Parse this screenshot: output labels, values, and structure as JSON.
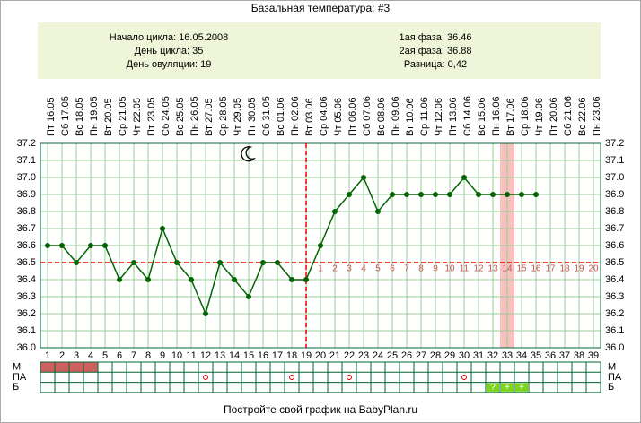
{
  "chart_data": {
    "type": "line",
    "title": "Базальная температура: #3",
    "info_left": [
      "Начало цикла: 16.05.2008",
      "День цикла: 35",
      "День овуляции: 19"
    ],
    "info_right": [
      "1ая фаза: 36.46",
      "2ая фаза: 36.88",
      "Разница: 0,42"
    ],
    "weekdays": [
      "Пт",
      "Сб",
      "Вс",
      "Пн",
      "Вт",
      "Ср",
      "Чт",
      "Пт",
      "Сб",
      "Вс",
      "Пн",
      "Вт",
      "Ср",
      "Чт",
      "Пт",
      "Сб",
      "Вс",
      "Пн",
      "Вт",
      "Ср",
      "Чт",
      "Пт",
      "Сб",
      "Вс",
      "Пн",
      "Вт",
      "Ср",
      "Чт",
      "Пт",
      "Сб",
      "Вс",
      "Пн",
      "Вт",
      "Ср",
      "Чт",
      "Пт",
      "Сб",
      "Вс",
      "Пн"
    ],
    "categories": [
      "16.05",
      "17.05",
      "18.05",
      "19.05",
      "20.05",
      "21.05",
      "22.05",
      "23.05",
      "24.05",
      "25.05",
      "26.05",
      "27.05",
      "28.05",
      "29.05",
      "30.05",
      "31.05",
      "01.06",
      "02.06",
      "03.06",
      "04.06",
      "05.06",
      "06.06",
      "07.06",
      "08.06",
      "09.06",
      "10.06",
      "11.06",
      "12.06",
      "13.06",
      "14.06",
      "15.06",
      "16.06",
      "17.06",
      "18.06",
      "19.06",
      "20.06",
      "21.06",
      "22.06",
      "23.06"
    ],
    "day_numbers": [
      1,
      2,
      3,
      4,
      5,
      6,
      7,
      8,
      9,
      10,
      11,
      12,
      13,
      14,
      15,
      16,
      17,
      18,
      19,
      20,
      21,
      22,
      23,
      24,
      25,
      26,
      27,
      28,
      29,
      30,
      31,
      32,
      33,
      34,
      35,
      36,
      37,
      38,
      39
    ],
    "series": [
      {
        "name": "Температура",
        "color": "#006400",
        "values": [
          36.6,
          36.6,
          36.5,
          36.6,
          36.6,
          36.4,
          36.5,
          36.4,
          36.7,
          36.5,
          36.4,
          36.2,
          36.5,
          36.4,
          36.3,
          36.5,
          36.5,
          36.4,
          36.4,
          36.6,
          36.8,
          36.9,
          37.0,
          36.8,
          36.9,
          36.9,
          36.9,
          36.9,
          36.9,
          37.0,
          36.9,
          36.9,
          36.9,
          36.9,
          36.9,
          null,
          null,
          null,
          null
        ]
      }
    ],
    "ylim": [
      36.0,
      37.2
    ],
    "yticks": [
      {
        "value": 36.0,
        "label": "36.0"
      },
      36.1,
      36.2,
      36.3,
      36.4,
      36.5,
      36.6,
      36.7,
      36.8,
      36.9,
      {
        "value": 37.0,
        "label": "37.0"
      },
      37.1,
      37.2
    ],
    "grid": true,
    "ovulation_day": 19,
    "coverline": 36.5,
    "phase_numbers": [
      1,
      2,
      3,
      4,
      5,
      6,
      7,
      8,
      9,
      10,
      11,
      12,
      13,
      14,
      15,
      16,
      17,
      18,
      19,
      20
    ],
    "highlight_day": 33,
    "moon_day": 15,
    "row_labels": [
      "М",
      "ПА",
      "Б"
    ],
    "menstruation_days": [
      1,
      2,
      3,
      4
    ],
    "pa_days": [
      12,
      18,
      22,
      30
    ],
    "b_marks": [
      {
        "day": 32,
        "label": "?"
      },
      {
        "day": 33,
        "label": "+"
      },
      {
        "day": 34,
        "label": "+"
      }
    ],
    "footer": "Постройте свой график на BabyPlan.ru"
  }
}
